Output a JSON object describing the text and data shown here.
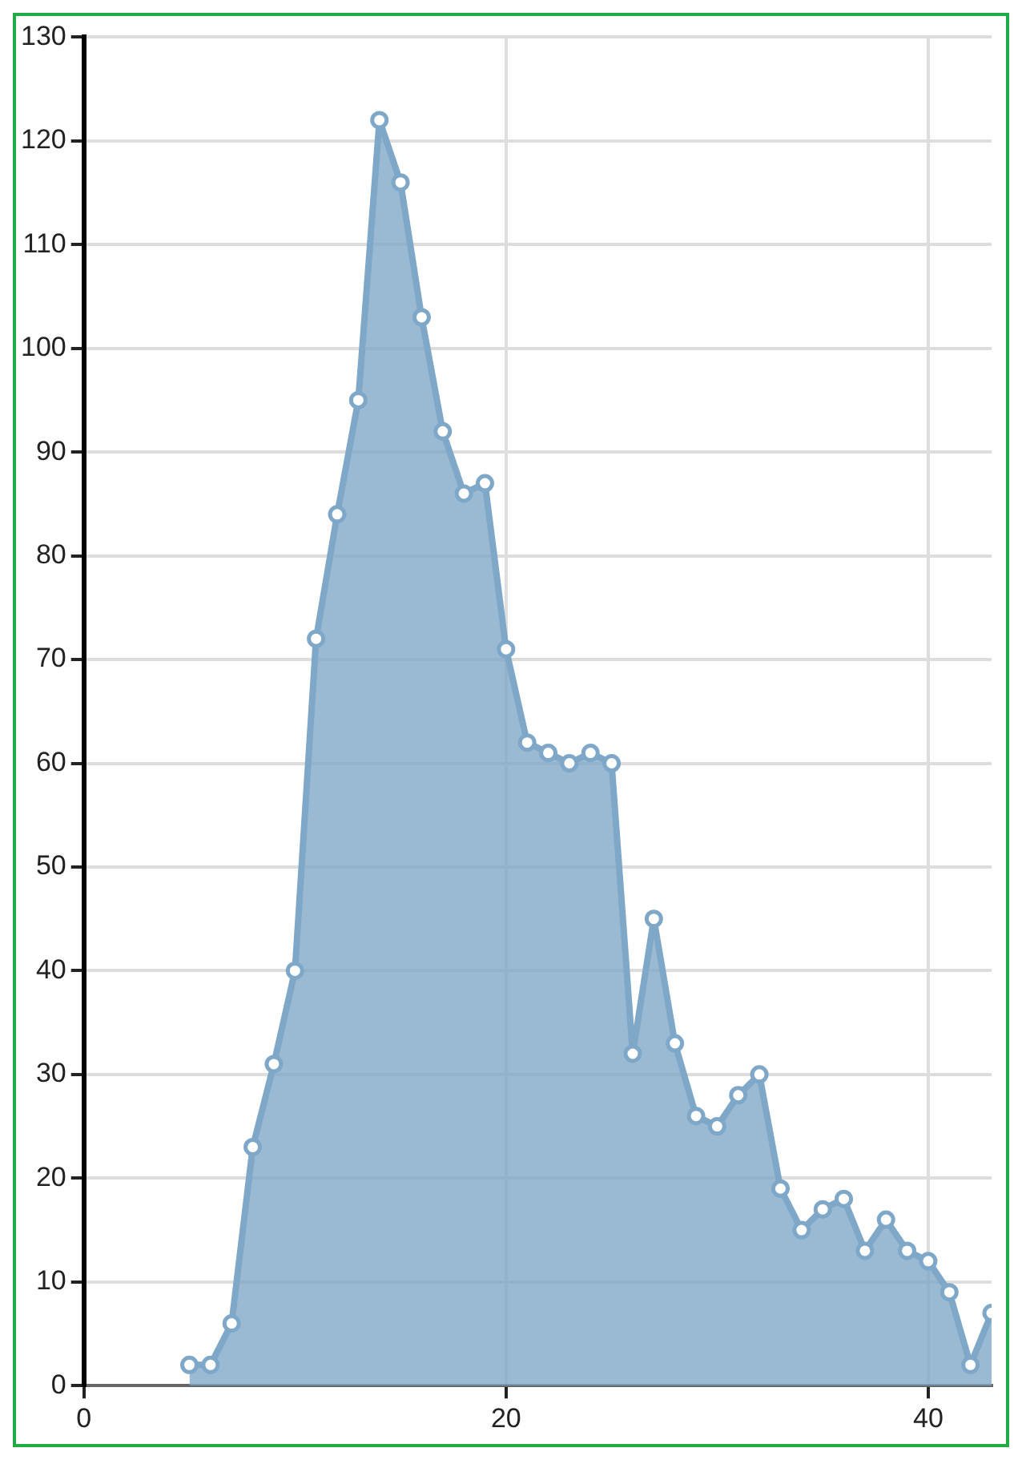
{
  "chart_data": {
    "type": "area",
    "x": [
      5,
      6,
      7,
      8,
      9,
      10,
      11,
      12,
      13,
      14,
      15,
      16,
      17,
      18,
      19,
      20,
      21,
      22,
      23,
      24,
      25,
      26,
      27,
      28,
      29,
      30,
      31,
      32,
      33,
      34,
      35,
      36,
      37,
      38,
      39,
      40,
      41,
      42,
      43
    ],
    "series": [
      {
        "color": "#7ea7c8",
        "values": [
          2,
          2,
          6,
          23,
          31,
          40,
          72,
          84,
          95,
          122,
          116,
          103,
          92,
          86,
          87,
          71,
          62,
          61,
          60,
          61,
          60,
          32,
          45,
          33,
          26,
          25,
          28,
          30,
          19,
          15,
          17,
          18,
          13,
          16,
          13,
          12,
          9,
          2,
          7
        ]
      }
    ],
    "xlim": [
      0,
      43
    ],
    "xticks": [
      0,
      20,
      40
    ],
    "ylim": [
      0,
      130
    ],
    "yticks": [
      0,
      10,
      20,
      30,
      40,
      50,
      60,
      70,
      80,
      90,
      100,
      110,
      120,
      130
    ],
    "grid": true,
    "marker": "circle",
    "legend": false
  }
}
